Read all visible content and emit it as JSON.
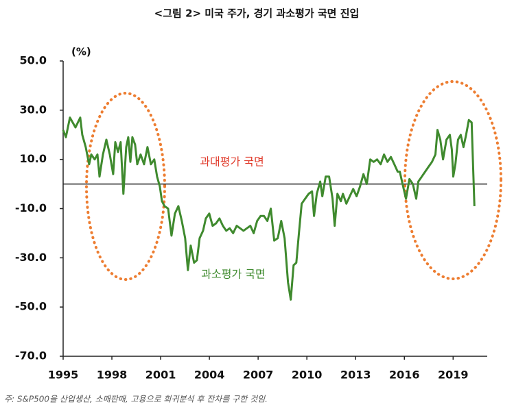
{
  "chart_data": {
    "type": "line",
    "title": "<그림 2> 미국 주가, 경기 과소평가 국면 진입",
    "y_unit": "(%)",
    "annotations": [
      "과대평가 국면",
      "과소평가 국면"
    ],
    "note": "주: S&P500을 산업생산, 소매판매, 고용으로 회귀분석 후 잔차를 구한 것임.",
    "color": "#3f8a2e",
    "x": [
      1995.0,
      1995.17,
      1995.42,
      1995.76,
      1996.05,
      1996.18,
      1996.39,
      1996.6,
      1996.73,
      1996.94,
      1997.11,
      1997.24,
      1997.45,
      1997.66,
      1997.87,
      1998.08,
      1998.21,
      1998.38,
      1998.54,
      1998.71,
      1998.88,
      1999.01,
      1999.14,
      1999.26,
      1999.43,
      1999.56,
      1999.77,
      1999.98,
      2000.19,
      2000.4,
      2000.61,
      2000.78,
      2000.95,
      2001.08,
      2001.24,
      2001.46,
      2001.67,
      2001.88,
      2002.09,
      2002.3,
      2002.51,
      2002.68,
      2002.85,
      2003.06,
      2003.23,
      2003.4,
      2003.61,
      2003.78,
      2003.99,
      2004.2,
      2004.41,
      2004.62,
      2004.83,
      2005.04,
      2005.25,
      2005.46,
      2005.68,
      2005.89,
      2006.1,
      2006.31,
      2006.52,
      2006.73,
      2006.94,
      2007.15,
      2007.36,
      2007.57,
      2007.78,
      2007.99,
      2008.21,
      2008.42,
      2008.63,
      2008.84,
      2009.01,
      2009.18,
      2009.35,
      2009.51,
      2009.68,
      2009.89,
      2010.11,
      2010.32,
      2010.44,
      2010.61,
      2010.82,
      2010.95,
      2011.16,
      2011.37,
      2011.58,
      2011.71,
      2011.88,
      2012.09,
      2012.22,
      2012.43,
      2012.64,
      2012.85,
      2013.06,
      2013.27,
      2013.48,
      2013.69,
      2013.9,
      2014.11,
      2014.32,
      2014.54,
      2014.75,
      2014.96,
      2015.17,
      2015.38,
      2015.59,
      2015.72,
      2015.89,
      2016.1,
      2016.31,
      2016.52,
      2016.73,
      2016.86,
      2017.07,
      2017.28,
      2017.49,
      2017.7,
      2017.91,
      2018.04,
      2018.21,
      2018.38,
      2018.59,
      2018.8,
      2018.92,
      2019.01,
      2019.14,
      2019.3,
      2019.47,
      2019.64,
      2019.8,
      2019.97,
      2020.14,
      2020.31
    ],
    "values": [
      22,
      19,
      27,
      23,
      27,
      20,
      15,
      8,
      12,
      10,
      12,
      3,
      12,
      18,
      12,
      4,
      17,
      13,
      17,
      -4,
      15,
      19,
      9,
      19,
      16,
      8,
      12,
      8,
      15,
      8,
      10,
      3,
      -1,
      -7,
      -9,
      -10,
      -21,
      -12,
      -9,
      -15,
      -22,
      -35,
      -25,
      -32,
      -31,
      -22,
      -19,
      -14,
      -12,
      -17,
      -16,
      -14,
      -17,
      -19,
      -18,
      -20,
      -17,
      -18,
      -19,
      -18,
      -17,
      -20,
      -15,
      -13,
      -13,
      -15,
      -10,
      -23,
      -22,
      -15,
      -22,
      -40,
      -47,
      -33,
      -32,
      -20,
      -8,
      -6,
      -4,
      -3,
      -13,
      -4,
      1,
      -5,
      3,
      3,
      -6,
      -17,
      -4,
      -7,
      -4,
      -8,
      -5,
      -2,
      -5,
      -1,
      4,
      0,
      10,
      9,
      10,
      8,
      12,
      9,
      11,
      8,
      5,
      5,
      0,
      -6,
      2,
      0,
      -6,
      1,
      3,
      5,
      7,
      9,
      12,
      22,
      18,
      10,
      18,
      20,
      14,
      3,
      8,
      18,
      20,
      15,
      20,
      26,
      25,
      -9
    ],
    "xlim": [
      1995,
      2021.1
    ],
    "ylim": [
      -70,
      50
    ],
    "xticks": [
      1995,
      1998,
      2001,
      2004,
      2007,
      2010,
      2013,
      2016,
      2019
    ],
    "yticks": [
      {
        "value": 50,
        "label": "50.0"
      },
      {
        "value": 30,
        "label": "30.0"
      },
      {
        "value": 10,
        "label": "10.0"
      },
      {
        "value": -10,
        "label": "-10.0"
      },
      {
        "value": -30,
        "label": "-30.0"
      },
      {
        "value": -50,
        "label": "-50.0"
      },
      {
        "value": -70,
        "label": "-70.0"
      }
    ]
  }
}
